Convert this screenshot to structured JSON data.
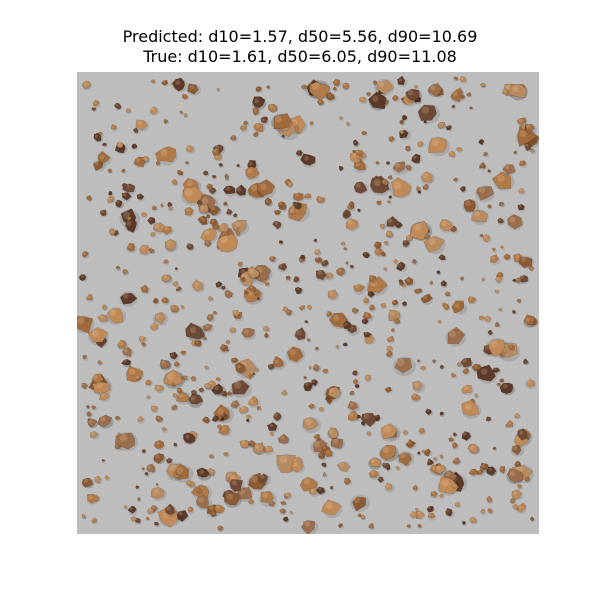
{
  "figure": {
    "title_line1": "Predicted: d10=1.57, d50=5.56, d90=10.69",
    "title_line2": "True: d10=1.61, d50=6.05, d90=11.08"
  },
  "image": {
    "background_color": "#bdbdbd",
    "particle_colors": [
      "#a06a3c",
      "#b07a48",
      "#8c5a32",
      "#c08a58",
      "#6e4a36",
      "#5c3a2a",
      "#9a6e4c",
      "#b88a60"
    ]
  }
}
